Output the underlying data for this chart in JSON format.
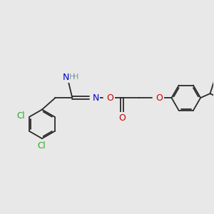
{
  "bg_color": "#e8e8e8",
  "bond_color": "#2a2a2a",
  "bond_lw": 1.3,
  "dbo": 0.06,
  "atom_colors": {
    "N": "#0000cc",
    "O": "#cc0000",
    "Cl": "#22aa22",
    "H": "#779999"
  },
  "fs": 8.5
}
